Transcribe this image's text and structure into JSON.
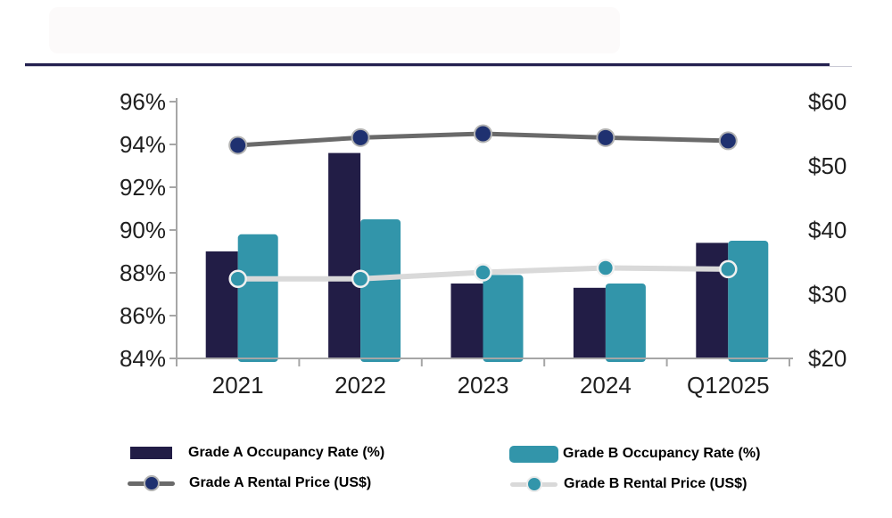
{
  "chart_data": {
    "type": "bar+line combo",
    "title": "",
    "categories": [
      "2021",
      "2022",
      "2023",
      "2024",
      "Q12025"
    ],
    "left_axis": {
      "unit": "%",
      "min": 84,
      "max": 96,
      "tick_values": [
        96,
        94,
        92,
        90,
        88,
        86,
        84
      ],
      "tick_labels": [
        "96%",
        "94%",
        "92%",
        "90%",
        "88%",
        "86%",
        "84%"
      ]
    },
    "right_axis": {
      "unit": "US$",
      "min": 20,
      "max": 60,
      "tick_values": [
        60,
        50,
        40,
        30,
        20
      ],
      "tick_labels": [
        "$60",
        "$50",
        "$40",
        "$30",
        "$20"
      ]
    },
    "grid": "off",
    "legend_position": "bottom",
    "series": [
      {
        "name": "Grade A Occupancy Rate (%)",
        "type": "bar",
        "axis": "left",
        "color": "#221d46",
        "values": [
          89.0,
          93.6,
          87.5,
          87.3,
          89.4
        ]
      },
      {
        "name": "Grade B Occupancy Rate (%)",
        "type": "bar",
        "axis": "left",
        "color": "#3295aa",
        "values": [
          89.8,
          90.5,
          87.9,
          87.5,
          89.5
        ]
      },
      {
        "name": "Grade A Rental Price (US$)",
        "type": "line",
        "axis": "right",
        "line_color": "#6a6a6a",
        "marker_color": "#1f3170",
        "marker_ring_color": "#b3b3b3",
        "values": [
          53.2,
          54.4,
          55.0,
          54.4,
          53.9
        ]
      },
      {
        "name": "Grade B Rental Price (US$)",
        "type": "line",
        "axis": "right",
        "line_color": "#d9d9d9",
        "marker_color": "#3295aa",
        "marker_ring_color": "#f0f0f0",
        "values": [
          32.4,
          32.4,
          33.4,
          34.1,
          33.9
        ]
      }
    ],
    "colors": {
      "header_rule": "#23204f",
      "axis_line": "#a6a6a6",
      "tick_text": "#1f1f1f"
    }
  }
}
